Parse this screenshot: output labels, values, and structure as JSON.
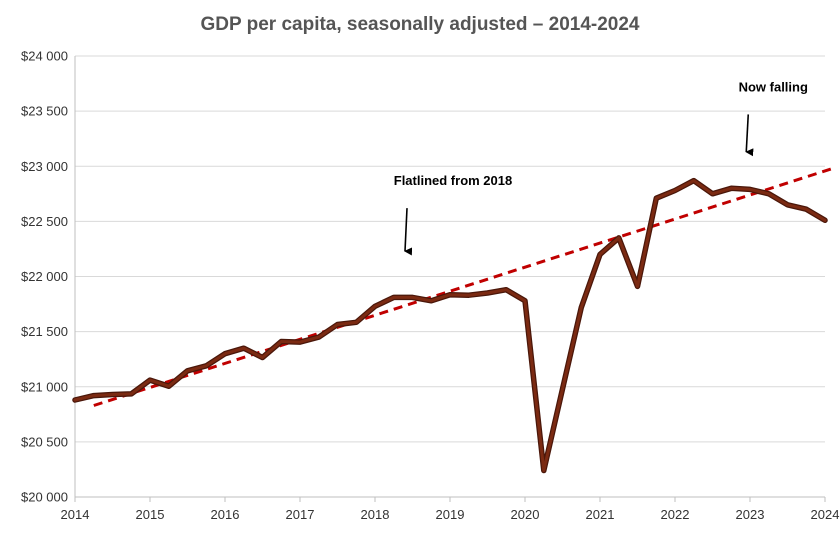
{
  "chart_data": {
    "type": "line",
    "title": "GDP per capita, seasonally adjusted –  2014-2024",
    "xlabel": "",
    "ylabel": "",
    "xlim": [
      2014,
      2024
    ],
    "ylim": [
      20000,
      24000
    ],
    "x_ticks": [
      2014,
      2015,
      2016,
      2017,
      2018,
      2019,
      2020,
      2021,
      2022,
      2023,
      2024
    ],
    "y_ticks": [
      20000,
      20500,
      21000,
      21500,
      22000,
      22500,
      23000,
      23500,
      24000
    ],
    "y_tick_labels": [
      "$20 000",
      "$20 500",
      "$21 000",
      "$21 500",
      "$22 000",
      "$22 500",
      "$23 000",
      "$23 500",
      "$24 000"
    ],
    "grid": "horizontal",
    "legend": "none",
    "series": [
      {
        "color": "#7b2a12",
        "x": [
          2014.0,
          2014.25,
          2014.5,
          2014.75,
          2015.0,
          2015.25,
          2015.5,
          2015.75,
          2016.0,
          2016.25,
          2016.5,
          2016.75,
          2017.0,
          2017.25,
          2017.5,
          2017.75,
          2018.0,
          2018.25,
          2018.5,
          2018.75,
          2019.0,
          2019.25,
          2019.5,
          2019.75,
          2020.0,
          2020.25,
          2020.5,
          2020.75,
          2021.0,
          2021.25,
          2021.5,
          2021.75,
          2022.0,
          2022.25,
          2022.5,
          2022.75,
          2023.0,
          2023.25,
          2023.5,
          2023.75,
          2024.0
        ],
        "values": [
          20880,
          20920,
          20930,
          20935,
          21060,
          21005,
          21145,
          21190,
          21300,
          21350,
          21265,
          21410,
          21405,
          21450,
          21565,
          21585,
          21730,
          21810,
          21810,
          21780,
          21835,
          21830,
          21850,
          21880,
          21780,
          20240,
          20980,
          21720,
          22200,
          22350,
          21910,
          22710,
          22780,
          22870,
          22750,
          22800,
          22790,
          22750,
          22650,
          22610,
          22510
        ]
      },
      {
        "type": "trend",
        "color": "#c00000",
        "x": [
          2014.25,
          2024.1
        ],
        "values": [
          20830,
          22980
        ]
      }
    ],
    "annotations": [
      {
        "text": "Flatlined from 2018",
        "arrow_x": 2018.4,
        "arrow_from_y": 22620,
        "arrow_to_y": 22230
      },
      {
        "text": "Now falling",
        "arrow_x": 2022.95,
        "arrow_from_y": 23470,
        "arrow_to_y": 23130
      }
    ]
  }
}
